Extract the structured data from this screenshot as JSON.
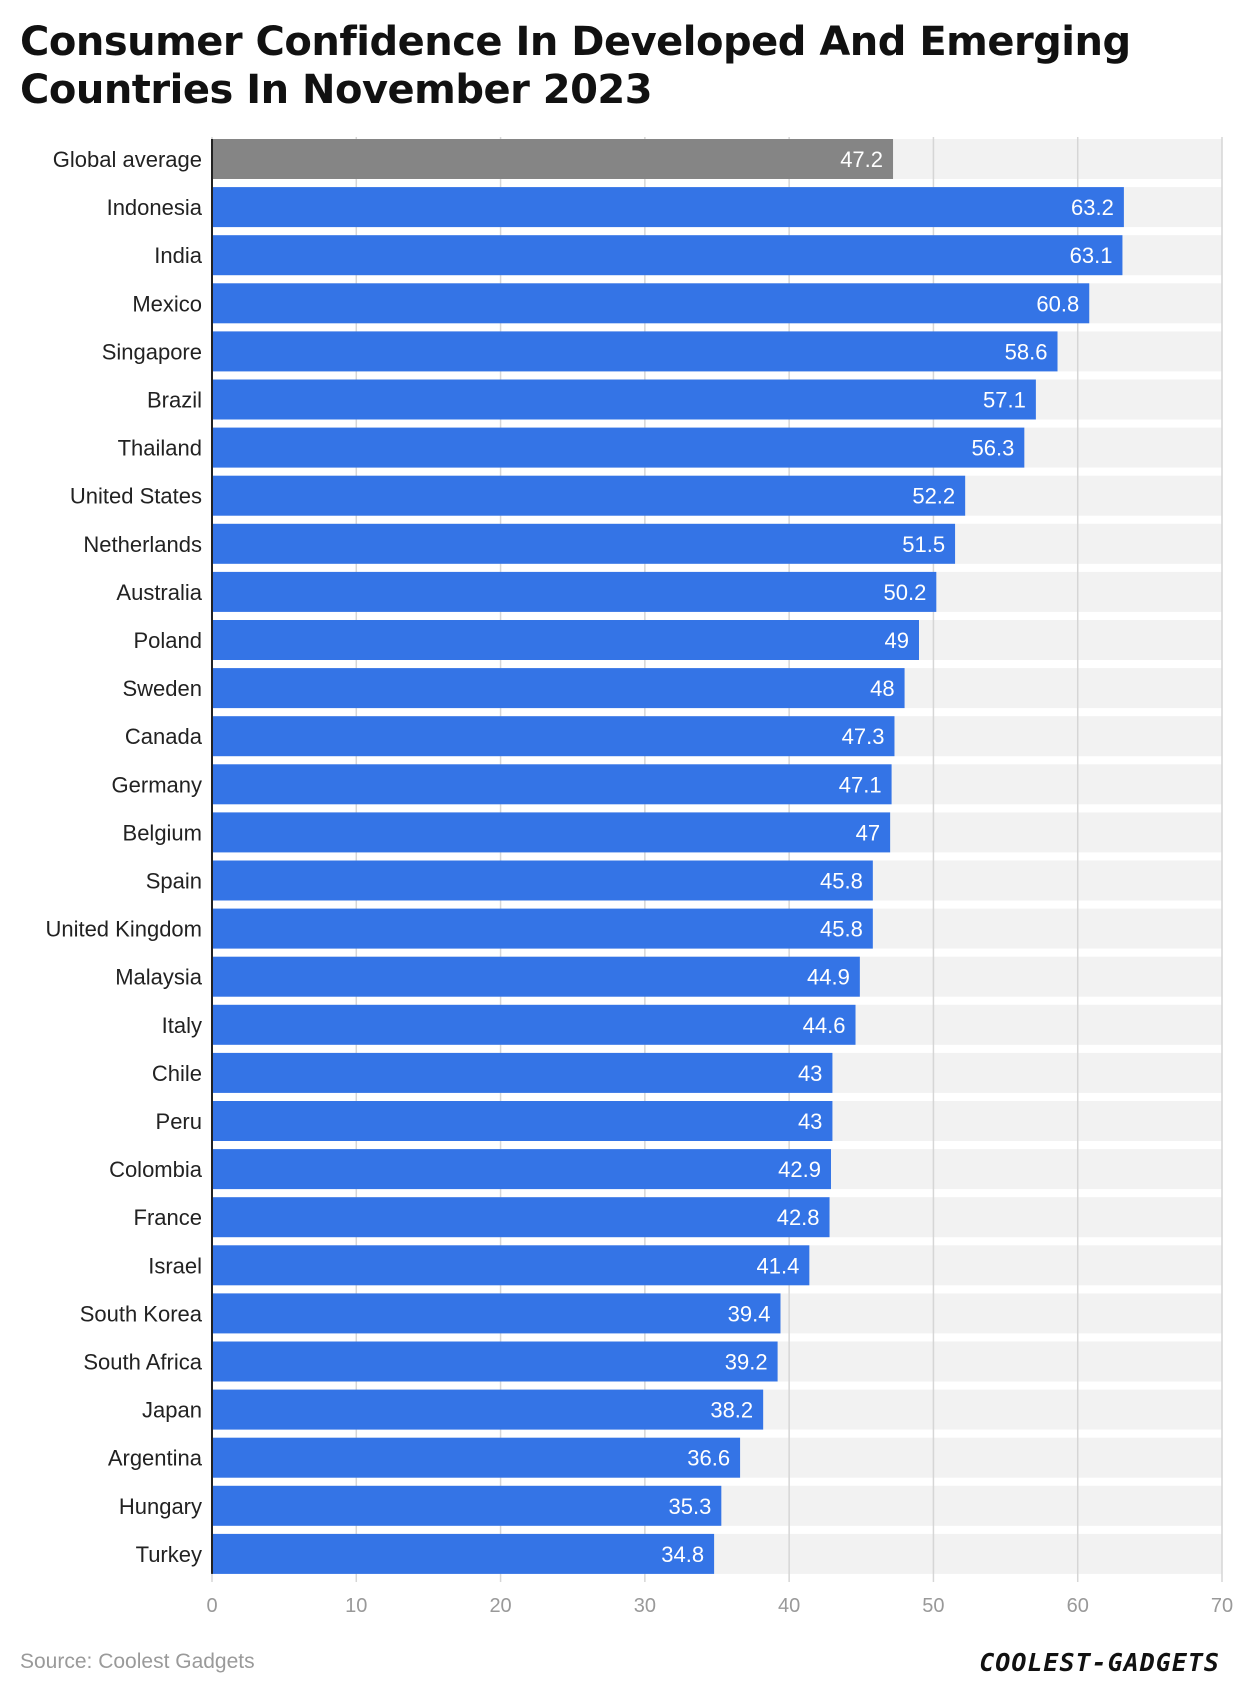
{
  "title": "Consumer Confidence In Developed And Emerging Countries In November 2023",
  "source": "Source: Coolest Gadgets",
  "brand": "COOLEST-GADGETS",
  "colors": {
    "bar": "#3474e6",
    "highlight_bar": "#858585",
    "band": "#f2f2f2",
    "grid": "#d6d6d6",
    "category_text": "#222222",
    "tick_text": "#999999",
    "value_text": "#ffffff"
  },
  "chart_data": {
    "type": "bar",
    "orientation": "horizontal",
    "title": "Consumer Confidence In Developed And Emerging Countries In November 2023",
    "xlabel": "",
    "ylabel": "",
    "xlim": [
      0,
      70
    ],
    "ticks": [
      "0",
      "10",
      "20",
      "30",
      "40",
      "50",
      "60",
      "70"
    ],
    "grid": true,
    "highlight_category": "Global average",
    "categories": [
      "Global average",
      "Indonesia",
      "India",
      "Mexico",
      "Singapore",
      "Brazil",
      "Thailand",
      "United States",
      "Netherlands",
      "Australia",
      "Poland",
      "Sweden",
      "Canada",
      "Germany",
      "Belgium",
      "Spain",
      "United Kingdom",
      "Malaysia",
      "Italy",
      "Chile",
      "Peru",
      "Colombia",
      "France",
      "Israel",
      "South Korea",
      "South Africa",
      "Japan",
      "Argentina",
      "Hungary",
      "Turkey"
    ],
    "values": [
      47.2,
      63.2,
      63.1,
      60.8,
      58.6,
      57.1,
      56.3,
      52.2,
      51.5,
      50.2,
      49,
      48,
      47.3,
      47.1,
      47,
      45.8,
      45.8,
      44.9,
      44.6,
      43,
      43,
      42.9,
      42.8,
      41.4,
      39.4,
      39.2,
      38.2,
      36.6,
      35.3,
      34.8
    ],
    "value_labels": [
      "47.2",
      "63.2",
      "63.1",
      "60.8",
      "58.6",
      "57.1",
      "56.3",
      "52.2",
      "51.5",
      "50.2",
      "49",
      "48",
      "47.3",
      "47.1",
      "47",
      "45.8",
      "45.8",
      "44.9",
      "44.6",
      "43",
      "43",
      "42.9",
      "42.8",
      "41.4",
      "39.4",
      "39.2",
      "38.2",
      "36.6",
      "35.3",
      "34.8"
    ]
  }
}
